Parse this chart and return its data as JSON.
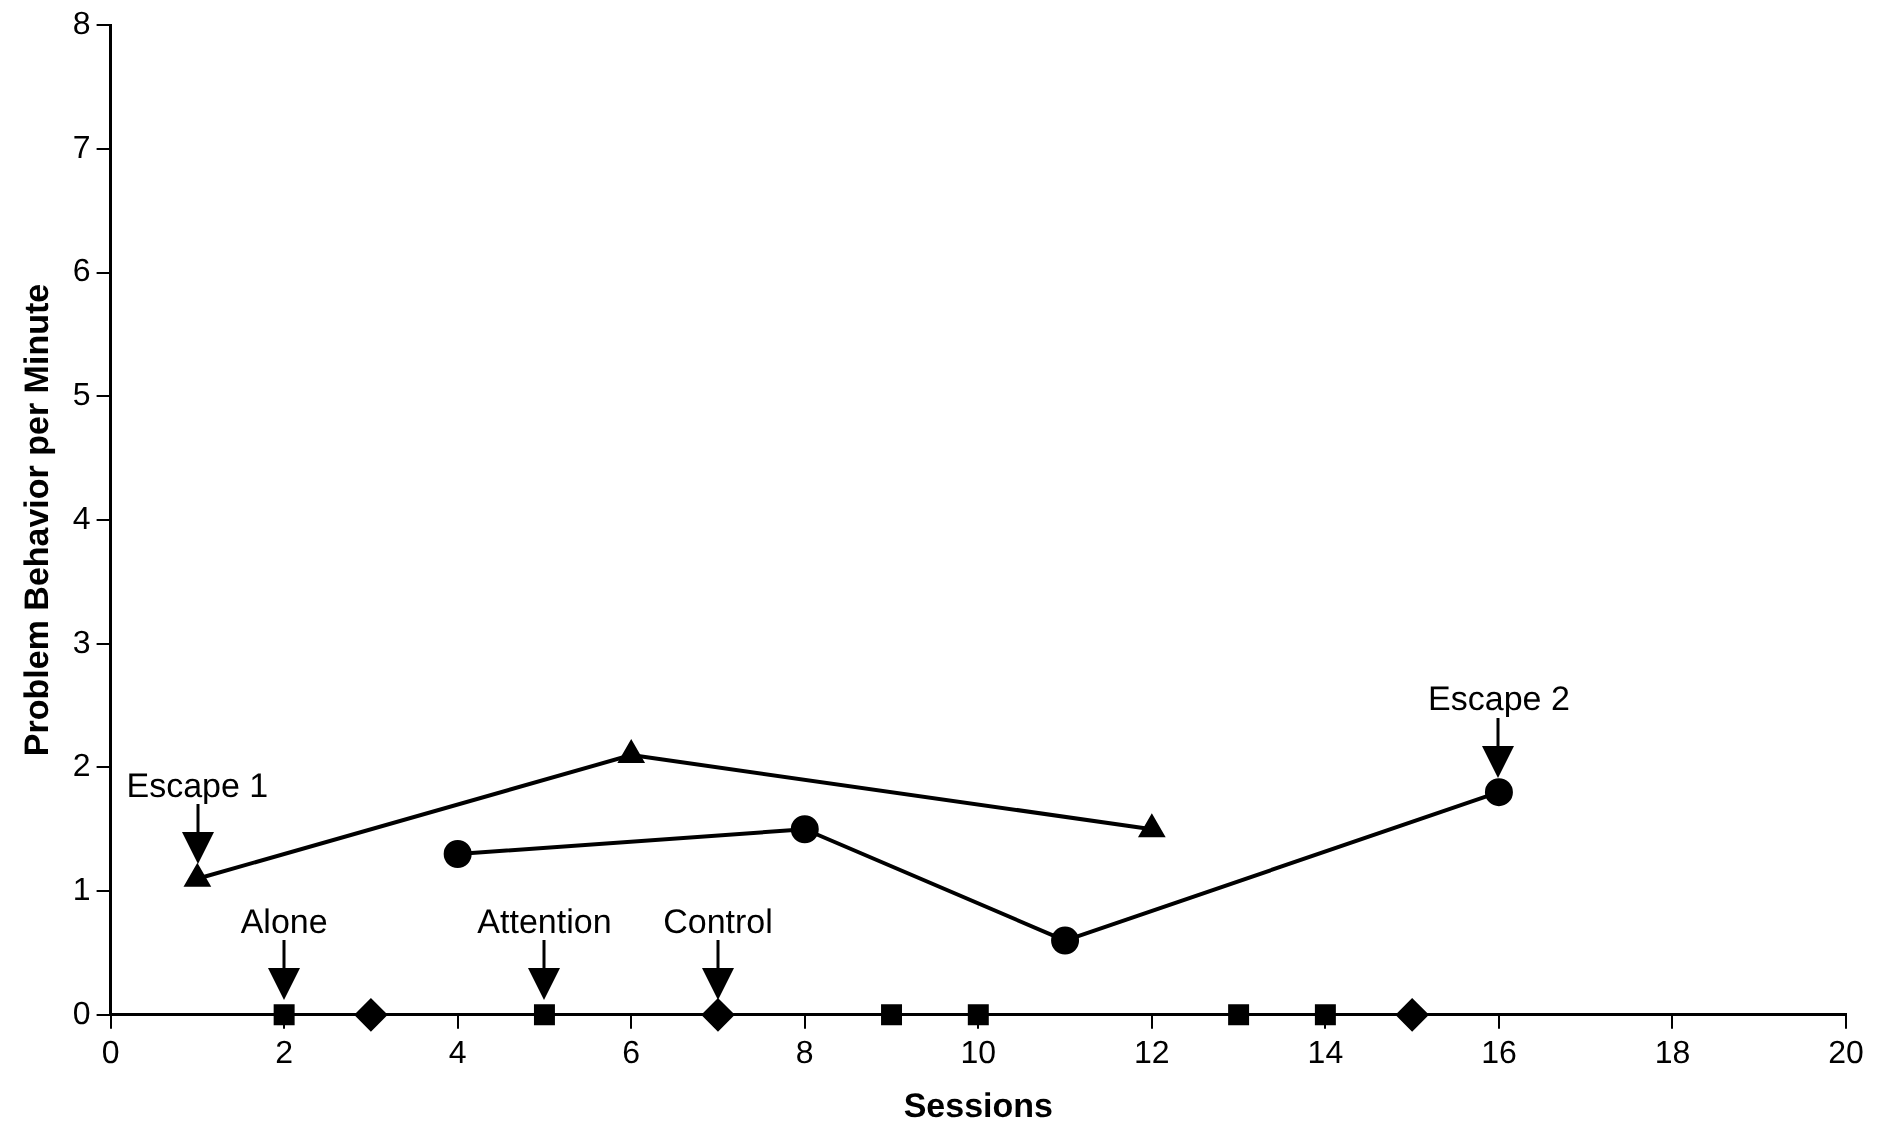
{
  "chart_data": {
    "type": "line",
    "xlabel": "Sessions",
    "ylabel": "Problem Behavior per Minute",
    "xlim": [
      0,
      20
    ],
    "xticks": [
      0,
      2,
      4,
      6,
      8,
      10,
      12,
      14,
      16,
      18,
      20
    ],
    "ylim": [
      0,
      8
    ],
    "yticks": [
      0,
      1,
      2,
      3,
      4,
      5,
      6,
      7,
      8
    ],
    "grid": false,
    "legend": false,
    "line_style": "solid",
    "series": [
      {
        "color": "#000000",
        "marker": "triangle",
        "x": [
          1,
          6,
          12
        ],
        "values": [
          1.1,
          2.1,
          1.5
        ]
      },
      {
        "color": "#000000",
        "marker": "circle",
        "x": [
          4,
          8,
          11,
          16
        ],
        "values": [
          1.3,
          1.5,
          0.6,
          1.8
        ]
      },
      {
        "type": "scatter",
        "color": "#000000",
        "marker": "square",
        "x": [
          2,
          5,
          9,
          10,
          13,
          14
        ],
        "values": [
          0,
          0,
          0,
          0,
          0,
          0
        ]
      },
      {
        "type": "scatter",
        "color": "#000000",
        "marker": "diamond",
        "x": [
          3,
          7,
          15
        ],
        "values": [
          0,
          0,
          0
        ]
      }
    ],
    "annotations": [
      {
        "text": "Escape 1",
        "x": 1,
        "y": 1.1
      },
      {
        "text": "Alone",
        "x": 2,
        "y": 0
      },
      {
        "text": "Attention",
        "x": 5,
        "y": 0
      },
      {
        "text": "Control",
        "x": 7,
        "y": 0
      },
      {
        "text": "Escape 2",
        "x": 16,
        "y": 1.8
      }
    ]
  }
}
